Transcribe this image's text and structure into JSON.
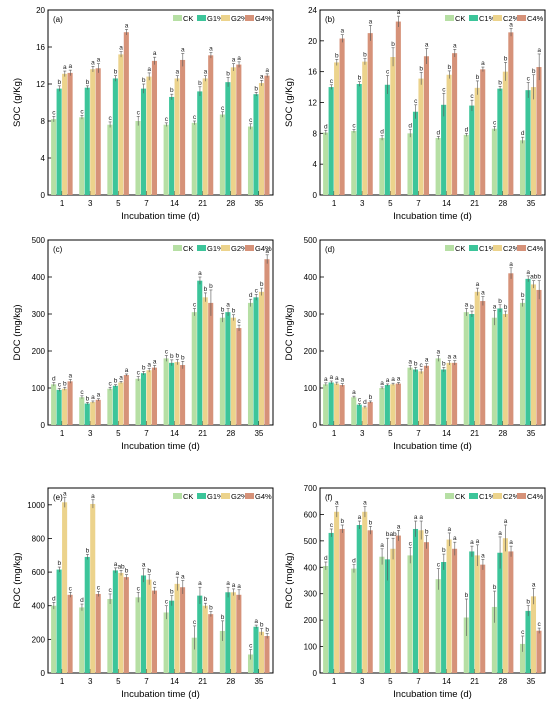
{
  "colors": {
    "CK": "#b6dfa4",
    "G1": "#3cc59a",
    "G2": "#ecd38c",
    "G4": "#d69279",
    "err": "#555555"
  },
  "chart_data": [
    {
      "type": "bar",
      "panel_label": "(a)",
      "xlabel": "Incubation time (d)",
      "ylabel": "SOC (g/Kg)",
      "ylim": [
        0,
        20
      ],
      "yticks": [
        "0",
        "4",
        "8",
        "12",
        "16",
        "20"
      ],
      "categories": [
        "1",
        "3",
        "5",
        "7",
        "14",
        "21",
        "28",
        "35"
      ],
      "legend": {
        "position": "top-right",
        "entries": [
          "CK",
          "G1%",
          "G2%",
          "G4%"
        ]
      },
      "series": [
        {
          "name": "CK",
          "values": [
            8.2,
            8.4,
            7.6,
            8.0,
            7.6,
            7.8,
            8.7,
            7.4
          ],
          "err": [
            0.3,
            0.2,
            0.3,
            0.5,
            0.2,
            0.2,
            0.3,
            0.3
          ],
          "sig": [
            "c",
            "c",
            "c",
            "c",
            "c",
            "c",
            "c",
            "c"
          ]
        },
        {
          "name": "G1%",
          "values": [
            11.5,
            11.6,
            12.6,
            11.5,
            10.6,
            11.2,
            12.2,
            10.9
          ],
          "err": [
            0.3,
            0.2,
            0.3,
            0.5,
            0.3,
            0.5,
            0.5,
            0.2
          ],
          "sig": [
            "b",
            "b",
            "b",
            "b",
            "b",
            "b",
            "b",
            "b"
          ]
        },
        {
          "name": "G2%",
          "values": [
            13.1,
            13.6,
            15.2,
            12.8,
            12.6,
            12.6,
            13.8,
            12.1
          ],
          "err": [
            0.3,
            0.3,
            0.3,
            0.4,
            0.3,
            0.3,
            0.4,
            0.3
          ],
          "sig": [
            "a",
            "a",
            "a",
            "a",
            "a",
            "a",
            "a",
            "a"
          ]
        },
        {
          "name": "G4%",
          "values": [
            13.2,
            13.7,
            17.6,
            14.5,
            14.6,
            15.1,
            14.1,
            12.9
          ],
          "err": [
            0.3,
            0.5,
            0.3,
            0.4,
            0.7,
            0.3,
            0.3,
            0.2
          ],
          "sig": [
            "a",
            "a",
            "a",
            "a",
            "a",
            "a",
            "a",
            "a"
          ]
        }
      ]
    },
    {
      "type": "bar",
      "panel_label": "(b)",
      "xlabel": "Incubation time (d)",
      "ylabel": "SOC (g/Kg)",
      "ylim": [
        0,
        24
      ],
      "yticks": [
        "0",
        "4",
        "8",
        "12",
        "16",
        "20",
        "24"
      ],
      "categories": [
        "1",
        "3",
        "5",
        "7",
        "14",
        "21",
        "28",
        "35"
      ],
      "legend": {
        "position": "top-right",
        "entries": [
          "CK",
          "C1%",
          "C2%",
          "C4%"
        ]
      },
      "series": [
        {
          "name": "CK",
          "values": [
            8.1,
            8.3,
            7.4,
            8.0,
            7.4,
            7.8,
            8.6,
            7.1
          ],
          "err": [
            0.3,
            0.2,
            0.3,
            0.5,
            0.2,
            0.2,
            0.3,
            0.4
          ],
          "sig": [
            "d",
            "c",
            "d",
            "d",
            "d",
            "d",
            "c",
            "d"
          ]
        },
        {
          "name": "C1%",
          "values": [
            14.0,
            14.4,
            14.3,
            10.8,
            11.7,
            11.6,
            13.8,
            13.6
          ],
          "err": [
            0.3,
            0.3,
            1.2,
            0.9,
            1.5,
            0.7,
            0.3,
            1.0
          ],
          "sig": [
            "c",
            "b",
            "c",
            "c",
            "c",
            "c",
            "b",
            "c"
          ]
        },
        {
          "name": "C2%",
          "values": [
            17.2,
            17.3,
            17.9,
            15.1,
            15.6,
            13.9,
            16.0,
            14.0
          ],
          "err": [
            0.4,
            0.4,
            1.2,
            0.8,
            0.5,
            0.9,
            1.2,
            1.6
          ],
          "sig": [
            "b",
            "b",
            "b",
            "b",
            "b",
            "b",
            "b",
            "b"
          ]
        },
        {
          "name": "C4%",
          "values": [
            20.3,
            21.0,
            22.5,
            18.0,
            18.4,
            16.3,
            21.1,
            16.6
          ],
          "err": [
            0.5,
            1.0,
            0.7,
            1.0,
            0.5,
            0.3,
            0.5,
            1.7
          ],
          "sig": [
            "a",
            "a",
            "a",
            "a",
            "a",
            "a",
            "a",
            "a"
          ]
        }
      ]
    },
    {
      "type": "bar",
      "panel_label": "(c)",
      "xlabel": "Incubation time (d)",
      "ylabel": "DOC (mg/kg)",
      "ylim": [
        0,
        500
      ],
      "yticks": [
        "0",
        "100",
        "200",
        "300",
        "400",
        "500"
      ],
      "categories": [
        "1",
        "3",
        "5",
        "7",
        "14",
        "21",
        "28",
        "35"
      ],
      "legend": {
        "position": "top-right",
        "entries": [
          "CK",
          "G1%",
          "G2%",
          "G4%"
        ]
      },
      "series": [
        {
          "name": "CK",
          "values": [
            110,
            75,
            98,
            125,
            180,
            305,
            290,
            330
          ],
          "err": [
            5,
            4,
            4,
            6,
            8,
            10,
            12,
            10
          ],
          "sig": [
            "d",
            "c",
            "c",
            "c",
            "c",
            "c",
            "b",
            "d"
          ]
        },
        {
          "name": "G1%",
          "values": [
            95,
            58,
            106,
            140,
            168,
            390,
            305,
            345
          ],
          "err": [
            4,
            3,
            3,
            5,
            8,
            10,
            10,
            8
          ],
          "sig": [
            "c",
            "b",
            "b",
            "b",
            "b",
            "a",
            "a",
            "c"
          ]
        },
        {
          "name": "G2%",
          "values": [
            98,
            62,
            115,
            148,
            170,
            345,
            290,
            360
          ],
          "err": [
            4,
            3,
            3,
            5,
            7,
            12,
            8,
            10
          ],
          "sig": [
            "b",
            "a",
            "a",
            "a",
            "b",
            "b",
            "b",
            "b"
          ]
        },
        {
          "name": "G4%",
          "values": [
            118,
            68,
            135,
            155,
            162,
            330,
            262,
            448
          ],
          "err": [
            5,
            3,
            3,
            6,
            10,
            35,
            8,
            12
          ],
          "sig": [
            "a",
            "a",
            "a",
            "a",
            "b",
            "b",
            "c",
            "a"
          ]
        }
      ]
    },
    {
      "type": "bar",
      "panel_label": "(d)",
      "xlabel": "Incubation time (d)",
      "ylabel": "DOC (mg/kg)",
      "ylim": [
        0,
        500
      ],
      "yticks": [
        "0",
        "100",
        "200",
        "300",
        "400",
        "500"
      ],
      "categories": [
        "1",
        "3",
        "5",
        "7",
        "14",
        "21",
        "28",
        "35"
      ],
      "legend": {
        "position": "top-right",
        "entries": [
          "CK",
          "C1%",
          "C2%",
          "C4%"
        ]
      },
      "series": [
        {
          "name": "CK",
          "values": [
            110,
            75,
            100,
            155,
            180,
            305,
            290,
            330
          ],
          "err": [
            4,
            3,
            3,
            6,
            8,
            10,
            20,
            10
          ],
          "sig": [
            "a",
            "a",
            "a",
            "a",
            "a",
            "a",
            "a",
            "b"
          ]
        },
        {
          "name": "C1%",
          "values": [
            115,
            55,
            108,
            150,
            150,
            300,
            315,
            395
          ],
          "err": [
            4,
            3,
            3,
            6,
            6,
            8,
            10,
            8
          ],
          "sig": [
            "a",
            "c",
            "a",
            "b",
            "b",
            "b",
            "b",
            "a"
          ]
        },
        {
          "name": "C2%",
          "values": [
            112,
            48,
            110,
            145,
            168,
            360,
            300,
            380
          ],
          "err": [
            4,
            3,
            3,
            6,
            6,
            10,
            8,
            10
          ],
          "sig": [
            "a",
            "d",
            "a",
            "c",
            "a",
            "a",
            "b",
            "ab"
          ]
        },
        {
          "name": "C4%",
          "values": [
            108,
            62,
            112,
            160,
            168,
            335,
            410,
            365
          ],
          "err": [
            4,
            3,
            3,
            6,
            6,
            12,
            15,
            25
          ],
          "sig": [
            "a",
            "b",
            "a",
            "a",
            "a",
            "a",
            "a",
            "b"
          ]
        }
      ]
    },
    {
      "type": "bar",
      "panel_label": "(e)",
      "xlabel": "Incubation time (d)",
      "ylabel": "ROC (mg/kg)",
      "ylim": [
        0,
        1100
      ],
      "yticks": [
        "0",
        "200",
        "400",
        "600",
        "800",
        "1000"
      ],
      "categories": [
        "1",
        "3",
        "5",
        "7",
        "14",
        "21",
        "28",
        "35"
      ],
      "legend": {
        "position": "top-right",
        "entries": [
          "CK",
          "G1%",
          "G2%",
          "G4%"
        ]
      },
      "series": [
        {
          "name": "CK",
          "values": [
            400,
            390,
            440,
            450,
            360,
            210,
            250,
            110
          ],
          "err": [
            20,
            20,
            30,
            30,
            40,
            70,
            60,
            30
          ],
          "sig": [
            "d",
            "d",
            "c",
            "c",
            "c",
            "c",
            "b",
            "c"
          ]
        },
        {
          "name": "G1%",
          "values": [
            615,
            690,
            610,
            580,
            430,
            460,
            480,
            275
          ],
          "err": [
            15,
            15,
            15,
            40,
            30,
            50,
            30,
            10
          ],
          "sig": [
            "b",
            "b",
            "a",
            "a",
            "b",
            "a",
            "a",
            "a"
          ]
        },
        {
          "name": "G2%",
          "values": [
            1015,
            1005,
            595,
            555,
            530,
            400,
            480,
            245
          ],
          "err": [
            30,
            25,
            15,
            30,
            40,
            15,
            20,
            20
          ],
          "sig": [
            "a",
            "a",
            "ab",
            "b",
            "a",
            "b",
            "a",
            "b"
          ]
        },
        {
          "name": "G4%",
          "values": [
            465,
            470,
            570,
            490,
            510,
            350,
            465,
            220
          ],
          "err": [
            15,
            15,
            15,
            20,
            40,
            15,
            30,
            15
          ],
          "sig": [
            "c",
            "c",
            "b",
            "c",
            "a",
            "b",
            "a",
            "b"
          ]
        }
      ]
    },
    {
      "type": "bar",
      "panel_label": "(f)",
      "xlabel": "Incubation time (d)",
      "ylabel": "ROC (mg/kg)",
      "ylim": [
        0,
        700
      ],
      "yticks": [
        "0",
        "100",
        "200",
        "300",
        "400",
        "500",
        "600",
        "700"
      ],
      "categories": [
        "1",
        "3",
        "5",
        "7",
        "14",
        "21",
        "28",
        "35"
      ],
      "legend": {
        "position": "top-right",
        "entries": [
          "CK",
          "C1%",
          "C2%",
          "C4%"
        ]
      },
      "series": [
        {
          "name": "CK",
          "values": [
            405,
            395,
            440,
            445,
            355,
            210,
            250,
            110
          ],
          "err": [
            15,
            15,
            30,
            30,
            40,
            70,
            60,
            30
          ],
          "sig": [
            "d",
            "d",
            "a",
            "c",
            "c",
            "b",
            "b",
            "c"
          ]
        },
        {
          "name": "C1%",
          "values": [
            530,
            560,
            430,
            545,
            420,
            460,
            455,
            235
          ],
          "err": [
            15,
            15,
            80,
            30,
            30,
            20,
            60,
            20
          ],
          "sig": [
            "c",
            "a",
            "b",
            "a",
            "b",
            "a",
            "a",
            "b"
          ]
        },
        {
          "name": "C2%",
          "values": [
            610,
            610,
            470,
            540,
            505,
            445,
            510,
            290
          ],
          "err": [
            20,
            20,
            40,
            35,
            25,
            40,
            50,
            30
          ],
          "sig": [
            "a",
            "a",
            "ab",
            "a",
            "a",
            "a",
            "a",
            "a"
          ]
        },
        {
          "name": "C4%",
          "values": [
            545,
            540,
            520,
            495,
            470,
            410,
            460,
            160
          ],
          "err": [
            15,
            15,
            20,
            25,
            25,
            20,
            20,
            10
          ],
          "sig": [
            "b",
            "b",
            "a",
            "b",
            "a",
            "a",
            "a",
            "c"
          ]
        }
      ]
    }
  ]
}
